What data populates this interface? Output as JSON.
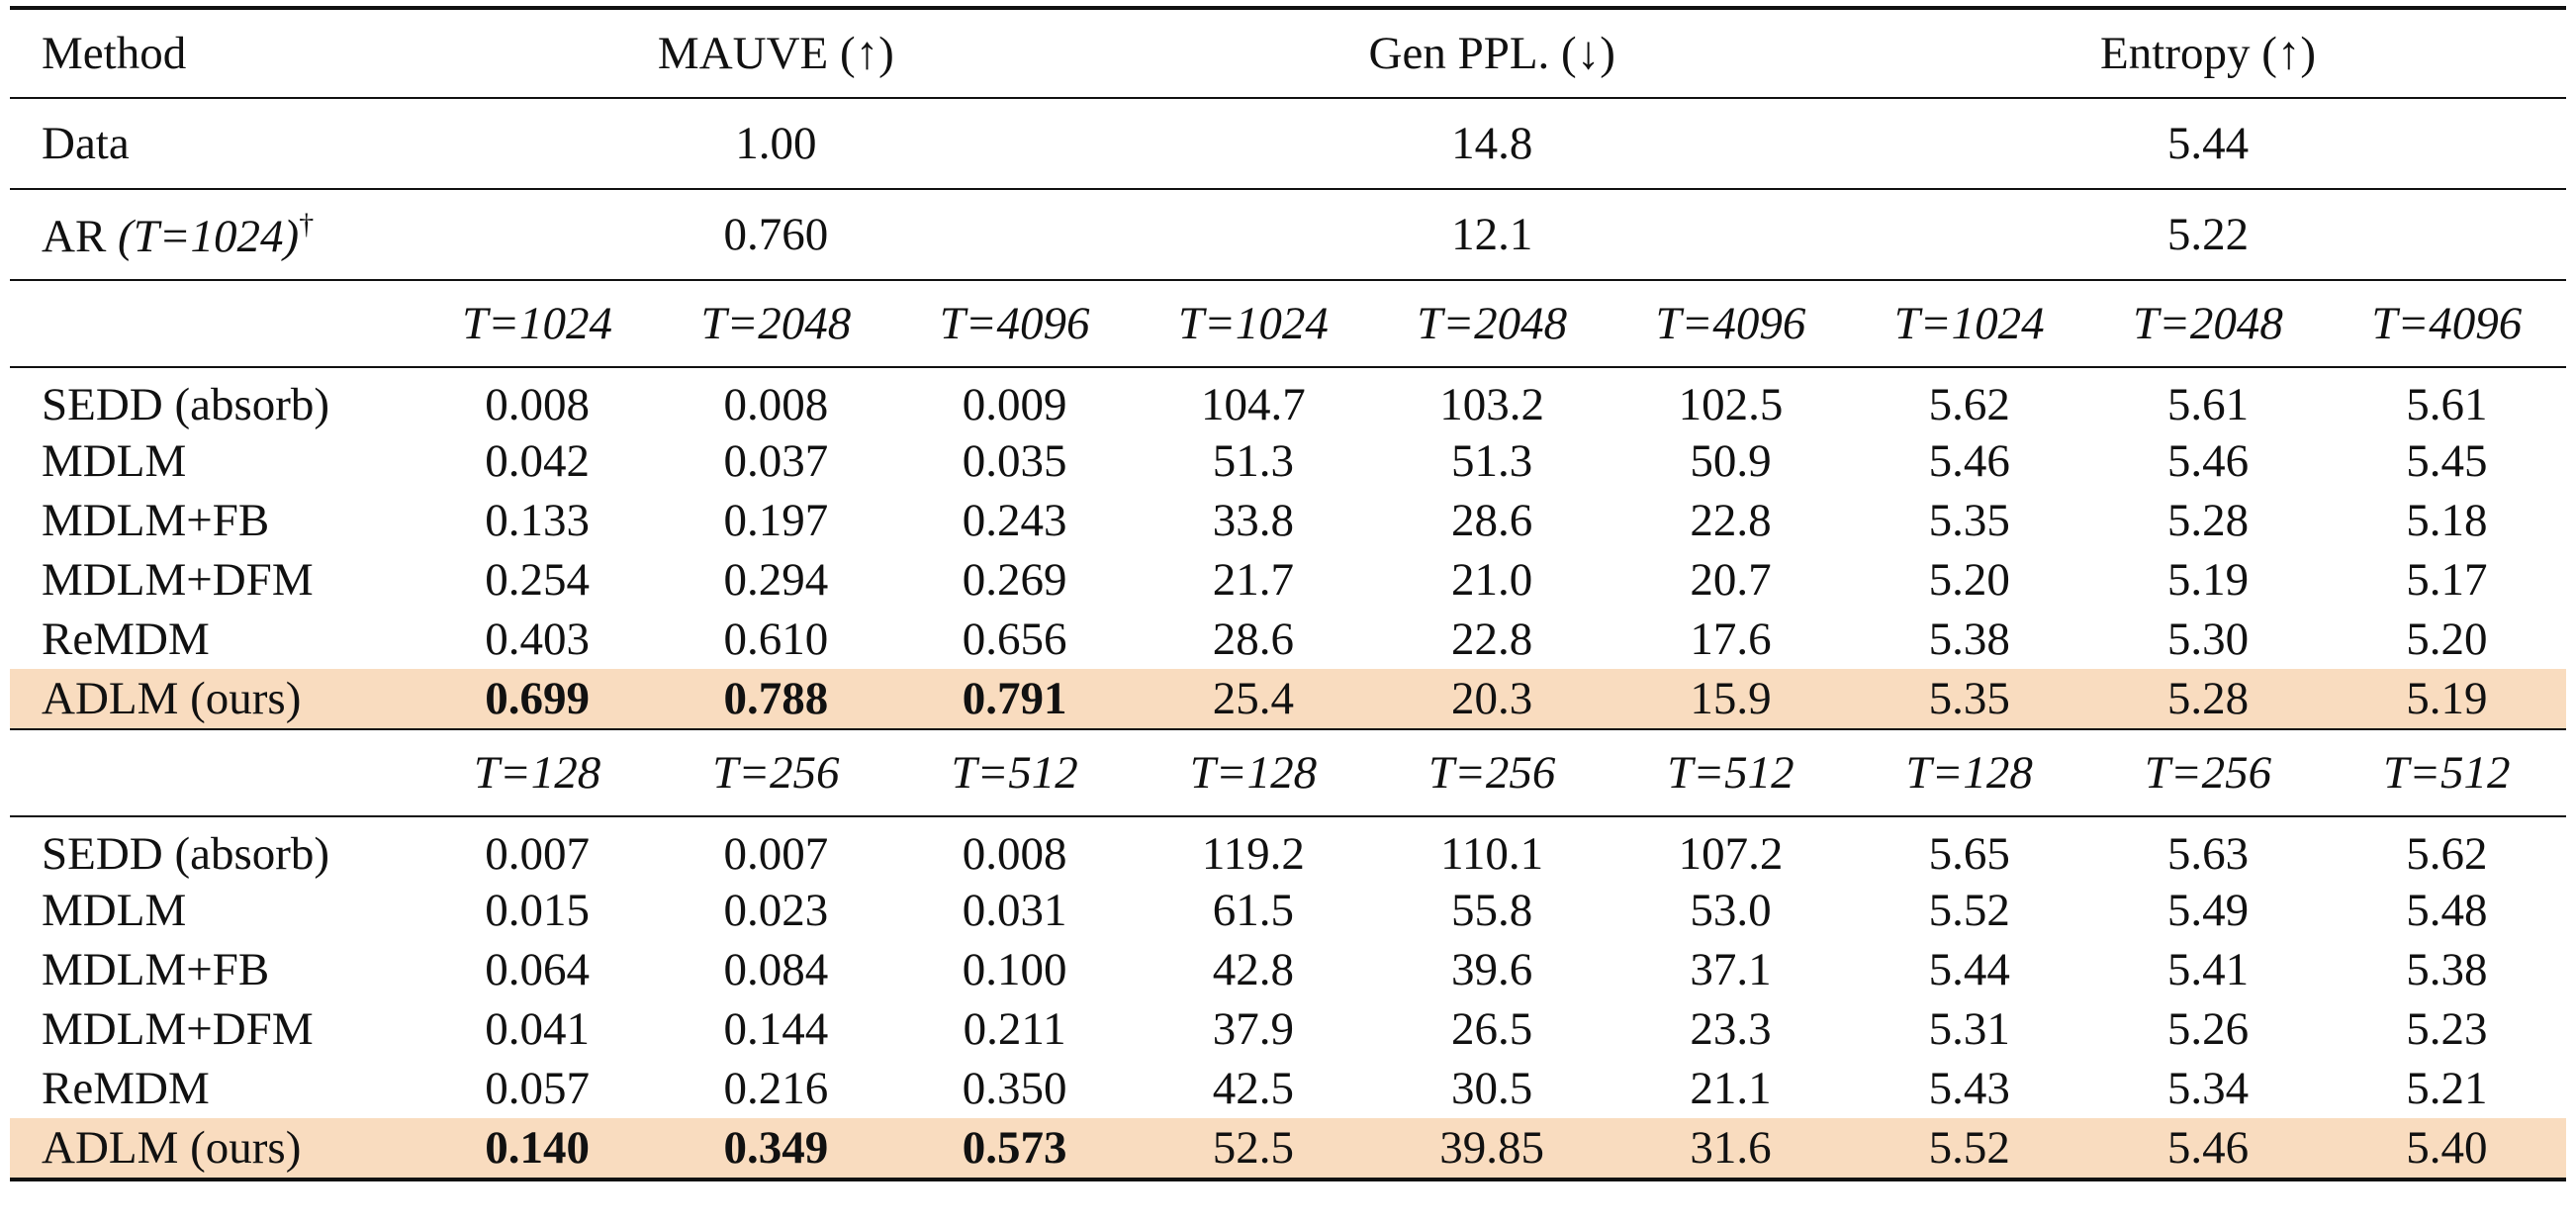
{
  "header": {
    "method": "Method",
    "mauve": "MAUVE (↑)",
    "genppl": "Gen PPL. (↓)",
    "entropy": "Entropy (↑)"
  },
  "data_row": {
    "label": "Data",
    "mauve": "1.00",
    "genppl": "14.8",
    "entropy": "5.44"
  },
  "ar_row": {
    "label_main": "AR",
    "label_italic": "(T=1024)",
    "label_sup": "†",
    "mauve": "0.760",
    "genppl": "12.1",
    "entropy": "5.22"
  },
  "block1": {
    "t_labels": [
      "T=1024",
      "T=2048",
      "T=4096",
      "T=1024",
      "T=2048",
      "T=4096",
      "T=1024",
      "T=2048",
      "T=4096"
    ],
    "rows": [
      {
        "method": "SEDD (absorb)",
        "values": [
          "0.008",
          "0.008",
          "0.009",
          "104.7",
          "103.2",
          "102.5",
          "5.62",
          "5.61",
          "5.61"
        ]
      },
      {
        "method": "MDLM",
        "values": [
          "0.042",
          "0.037",
          "0.035",
          "51.3",
          "51.3",
          "50.9",
          "5.46",
          "5.46",
          "5.45"
        ]
      },
      {
        "method": "MDLM+FB",
        "values": [
          "0.133",
          "0.197",
          "0.243",
          "33.8",
          "28.6",
          "22.8",
          "5.35",
          "5.28",
          "5.18"
        ]
      },
      {
        "method": "MDLM+DFM",
        "values": [
          "0.254",
          "0.294",
          "0.269",
          "21.7",
          "21.0",
          "20.7",
          "5.20",
          "5.19",
          "5.17"
        ]
      },
      {
        "method": "ReMDM",
        "values": [
          "0.403",
          "0.610",
          "0.656",
          "28.6",
          "22.8",
          "17.6",
          "5.38",
          "5.30",
          "5.20"
        ]
      },
      {
        "method": "ADLM (ours)",
        "values": [
          "0.699",
          "0.788",
          "0.791",
          "25.4",
          "20.3",
          "15.9",
          "5.35",
          "5.28",
          "5.19"
        ]
      }
    ]
  },
  "block2": {
    "t_labels": [
      "T=128",
      "T=256",
      "T=512",
      "T=128",
      "T=256",
      "T=512",
      "T=128",
      "T=256",
      "T=512"
    ],
    "rows": [
      {
        "method": "SEDD (absorb)",
        "values": [
          "0.007",
          "0.007",
          "0.008",
          "119.2",
          "110.1",
          "107.2",
          "5.65",
          "5.63",
          "5.62"
        ]
      },
      {
        "method": "MDLM",
        "values": [
          "0.015",
          "0.023",
          "0.031",
          "61.5",
          "55.8",
          "53.0",
          "5.52",
          "5.49",
          "5.48"
        ]
      },
      {
        "method": "MDLM+FB",
        "values": [
          "0.064",
          "0.084",
          "0.100",
          "42.8",
          "39.6",
          "37.1",
          "5.44",
          "5.41",
          "5.38"
        ]
      },
      {
        "method": "MDLM+DFM",
        "values": [
          "0.041",
          "0.144",
          "0.211",
          "37.9",
          "26.5",
          "23.3",
          "5.31",
          "5.26",
          "5.23"
        ]
      },
      {
        "method": "ReMDM",
        "values": [
          "0.057",
          "0.216",
          "0.350",
          "42.5",
          "30.5",
          "21.1",
          "5.43",
          "5.34",
          "5.21"
        ]
      },
      {
        "method": "ADLM (ours)",
        "values": [
          "0.140",
          "0.349",
          "0.573",
          "52.5",
          "39.85",
          "31.6",
          "5.52",
          "5.46",
          "5.40"
        ]
      }
    ]
  },
  "colors": {
    "highlight": "#f9dcbf",
    "rule": "#111111"
  }
}
